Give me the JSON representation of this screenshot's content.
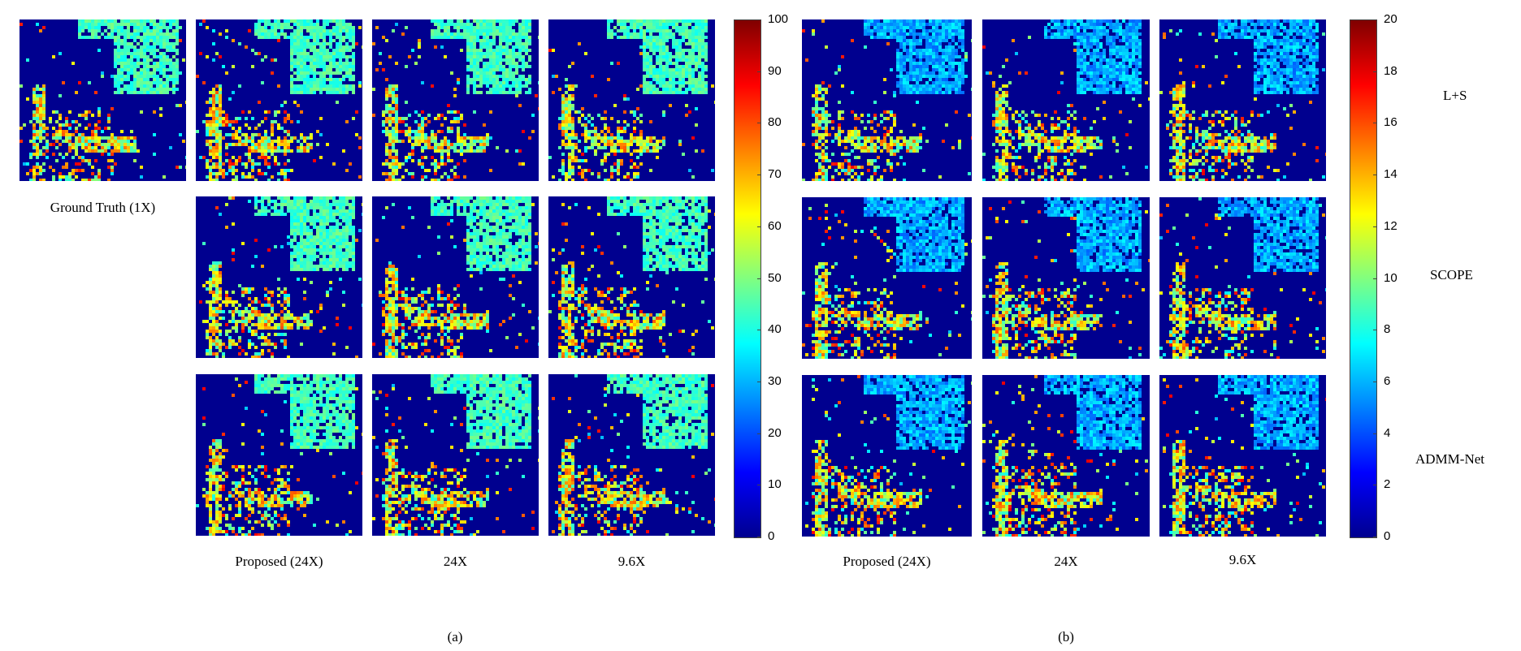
{
  "panel_a": {
    "ground_truth_label": "Ground Truth (1X)",
    "column_labels": [
      "Proposed (24X)",
      "24X",
      "9.6X"
    ],
    "colorbar_ticks": [
      "0",
      "10",
      "20",
      "30",
      "40",
      "50",
      "60",
      "70",
      "80",
      "90",
      "100"
    ],
    "caption": "(a)"
  },
  "panel_b": {
    "column_labels": [
      "Proposed (24X)",
      "24X",
      "9.6X"
    ],
    "colorbar_ticks": [
      "0",
      "2",
      "4",
      "6",
      "8",
      "10",
      "12",
      "14",
      "16",
      "18",
      "20"
    ],
    "caption": "(b)"
  },
  "row_labels": [
    "L+S",
    "SCOPE",
    "ADMM-Net"
  ],
  "colors": {
    "background_map": "#00008f",
    "colormap": "jet"
  }
}
